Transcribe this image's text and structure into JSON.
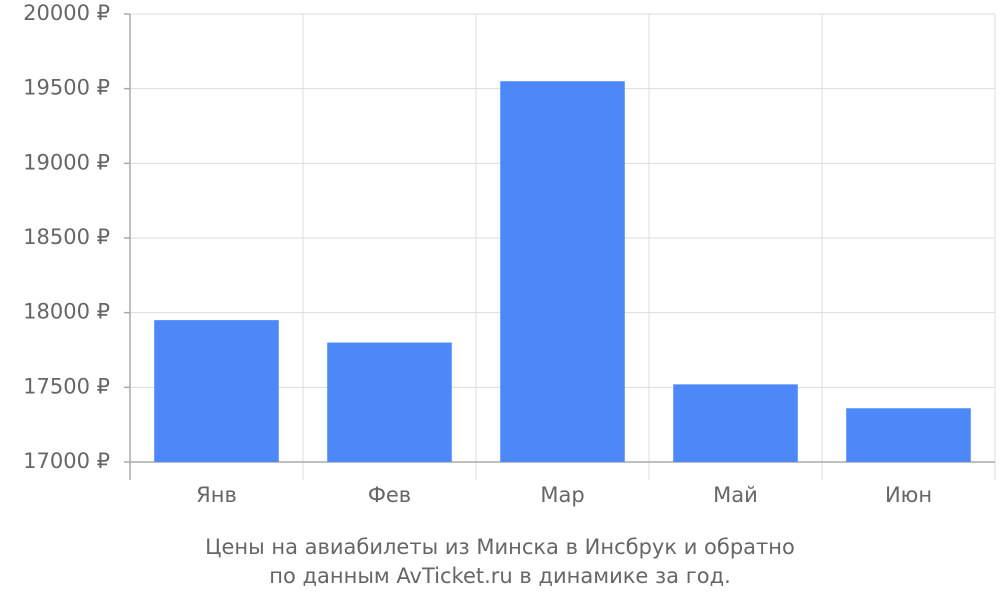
{
  "chart_data": {
    "type": "bar",
    "categories": [
      "Янв",
      "Фев",
      "Мар",
      "Май",
      "Июн"
    ],
    "values": [
      17950,
      17800,
      19550,
      17520,
      17360
    ],
    "color": "#4d88f9",
    "ylim": [
      17000,
      20000
    ],
    "yticks": [
      {
        "value": 17000,
        "label": "17000 ₽"
      },
      {
        "value": 17500,
        "label": "17500 ₽"
      },
      {
        "value": 18000,
        "label": "18000 ₽"
      },
      {
        "value": 18500,
        "label": "18500 ₽"
      },
      {
        "value": 19000,
        "label": "19000 ₽"
      },
      {
        "value": 19500,
        "label": "19500 ₽"
      },
      {
        "value": 20000,
        "label": "20000 ₽"
      }
    ],
    "grid": true,
    "caption": [
      "Цены на авиабилеты из Минска в Инсбрук и обратно",
      "по данным AvTicket.ru в динамике за год."
    ]
  }
}
